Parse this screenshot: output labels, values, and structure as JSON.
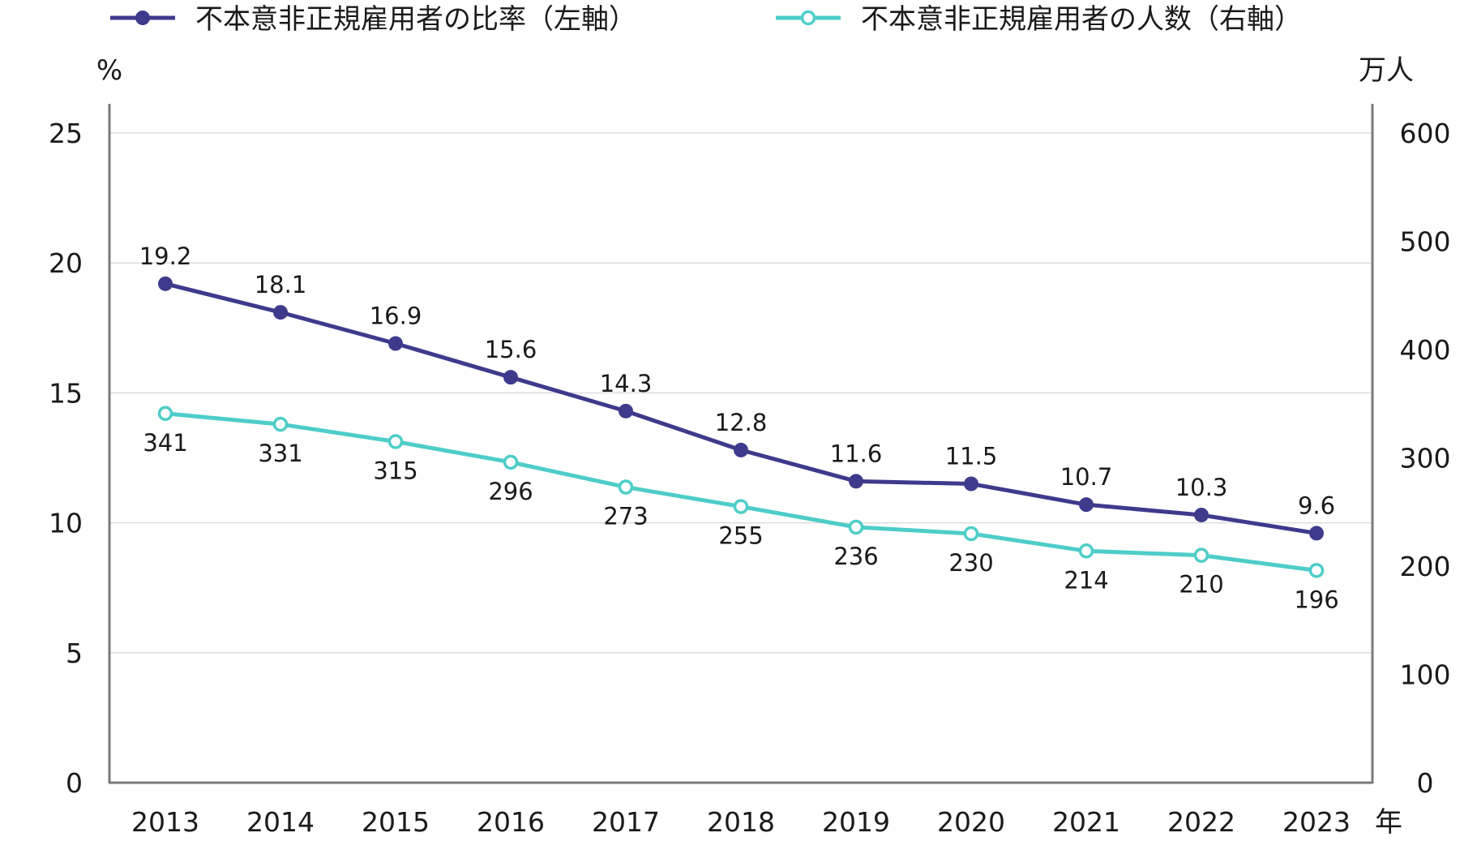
{
  "chart_data": {
    "type": "line",
    "categories": [
      "2013",
      "2014",
      "2015",
      "2016",
      "2017",
      "2018",
      "2019",
      "2020",
      "2021",
      "2022",
      "2023"
    ],
    "x_unit": "年",
    "series": [
      {
        "name": "不本意非正規雇用者の比率（左軸）",
        "axis": "left",
        "color": "#3e3a8c",
        "marker": "filled-circle",
        "values": [
          19.2,
          18.1,
          16.9,
          15.6,
          14.3,
          12.8,
          11.6,
          11.5,
          10.7,
          10.3,
          9.6
        ],
        "labels": [
          "19.2",
          "18.1",
          "16.9",
          "15.6",
          "14.3",
          "12.8",
          "11.6",
          "11.5",
          "10.7",
          "10.3",
          "9.6"
        ]
      },
      {
        "name": "不本意非正規雇用者の人数（右軸）",
        "axis": "right",
        "color": "#4ecdc8",
        "marker": "hollow-circle",
        "values": [
          341,
          331,
          315,
          296,
          273,
          255,
          236,
          230,
          214,
          210,
          196
        ],
        "labels": [
          "341",
          "331",
          "315",
          "296",
          "273",
          "255",
          "236",
          "230",
          "214",
          "210",
          "196"
        ]
      }
    ],
    "y_left": {
      "unit": "%",
      "min": 0,
      "max": 25,
      "ticks": [
        "0",
        "5",
        "10",
        "15",
        "20",
        "25"
      ],
      "tick_values": [
        0,
        5,
        10,
        15,
        20,
        25
      ]
    },
    "y_right": {
      "unit": "万人",
      "min": 0,
      "max": 600,
      "ticks": [
        "0",
        "100",
        "200",
        "300",
        "400",
        "500",
        "600"
      ],
      "tick_values": [
        0,
        100,
        200,
        300,
        400,
        500,
        600
      ]
    },
    "grid": true,
    "legend_position": "top"
  }
}
